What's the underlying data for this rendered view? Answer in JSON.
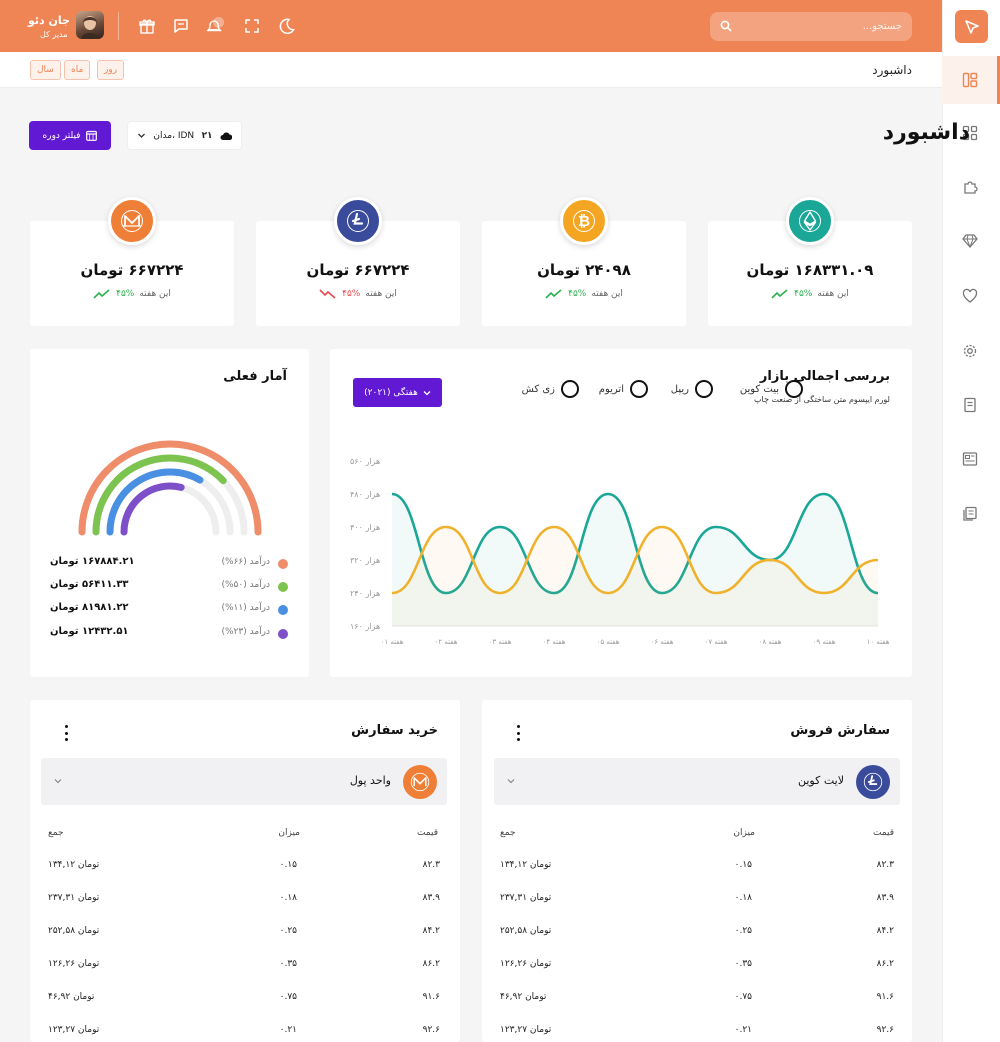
{
  "header": {
    "search_placeholder": "جستجو...",
    "user_name": "جان دئو",
    "user_role": "مدیر کل"
  },
  "subbar": {
    "title": "داشبورد",
    "ranges": [
      "روز",
      "ماه",
      "سال"
    ]
  },
  "page": {
    "title": "داشبورد",
    "filter_label": "فیلتر دوره",
    "weather_text": "مدان، IDN",
    "weather_temp": "۲۱"
  },
  "stats": [
    {
      "value": "۱۶۸۳۳۱.۰۹ تومان",
      "pct": "۴۵%",
      "trend": "up",
      "period": "این هفته",
      "coin": "ethereum",
      "color": "#1aa797"
    },
    {
      "value": "۲۴۰۹۸ تومان",
      "pct": "۴۵%",
      "trend": "up",
      "period": "این هفته",
      "coin": "bitcoin",
      "color": "#f4a623"
    },
    {
      "value": "۶۶۷۲۲۴ تومان",
      "pct": "۴۵%",
      "trend": "down",
      "period": "این هفته",
      "coin": "litecoin",
      "color": "#3a4b9c"
    },
    {
      "value": "۶۶۷۲۲۴ تومان",
      "pct": "۴۵%",
      "trend": "up",
      "period": "این هفته",
      "coin": "monero",
      "color": "#ef7f36"
    }
  ],
  "current_stats": {
    "title": "آمار فعلی",
    "items": [
      {
        "label": "درآمد (۶۶%)",
        "value": "۱۶۷۸۸۴.۲۱ تومان",
        "color": "#ef8d6a",
        "fraction": 0.66
      },
      {
        "label": "درآمد (۵۰%)",
        "value": "۵۶۴۱۱.۳۳ تومان",
        "color": "#7dc34f",
        "fraction": 0.5
      },
      {
        "label": "درآمد (۱۱%)",
        "value": "۸۱۹۸۱.۲۲ تومان",
        "color": "#4a90e2",
        "fraction": 0.11
      },
      {
        "label": "درآمد (۲۳%)",
        "value": "۱۲۴۳۲.۵۱ تومان",
        "color": "#7d4fc9",
        "fraction": 0.23
      }
    ]
  },
  "market": {
    "title": "بررسی اجمالی بازار",
    "subtitle": "لورم ایپسوم متن ساختگی از صنعت چاپ",
    "options": [
      "بیت کوین",
      "ریپل",
      "اتریوم",
      "زی کش"
    ],
    "period_button": "هفتگی (۲۰۲۱)"
  },
  "chart_data": {
    "type": "line",
    "x": [
      "هفته ۰۱",
      "هفته ۰۲",
      "هفته ۰۳",
      "هفته ۰۴",
      "هفته ۰۵",
      "هفته ۰۶",
      "هفته ۰۷",
      "هفته ۰۸",
      "هفته ۰۹",
      "هفته ۱۰"
    ],
    "y_ticks": [
      "۵۶۰ هزار",
      "۴۸۰ هزار",
      "۴۰۰ هزار",
      "۳۲۰ هزار",
      "۲۴۰ هزار",
      "۱۶۰ هزار"
    ],
    "ylim": [
      160,
      560
    ],
    "series": [
      {
        "color": "#1aa797",
        "values": [
          480,
          240,
          400,
          240,
          480,
          240,
          400,
          320,
          480,
          240
        ]
      },
      {
        "color": "#f0b12c",
        "values": [
          240,
          400,
          240,
          400,
          240,
          400,
          240,
          320,
          240,
          320
        ]
      }
    ]
  },
  "orders_buy": {
    "title": "خرید سفارش",
    "coin_label": "واحد پول",
    "columns": [
      "قیمت",
      "میزان",
      "جمع"
    ],
    "rows": [
      [
        "۸۲.۳",
        "۰.۱۵",
        "۱۳۴,۱۲ تومان"
      ],
      [
        "۸۳.۹",
        "۰.۱۸",
        "۲۳۷,۳۱ تومان"
      ],
      [
        "۸۴.۲",
        "۰.۲۵",
        "۲۵۲,۵۸ تومان"
      ],
      [
        "۸۶.۲",
        "۰.۳۵",
        "۱۲۶,۲۶ تومان"
      ],
      [
        "۹۱.۶",
        "۰.۷۵",
        "۴۶,۹۲ تومان"
      ],
      [
        "۹۲.۶",
        "۰.۲۱",
        "۱۲۳,۲۷ تومان"
      ]
    ]
  },
  "orders_sell": {
    "title": "سفارش فروش",
    "coin_label": "لایت کوین",
    "columns": [
      "قیمت",
      "میزان",
      "جمع"
    ],
    "rows": [
      [
        "۸۲.۳",
        "۰.۱۵",
        "۱۳۴,۱۲ تومان"
      ],
      [
        "۸۳.۹",
        "۰.۱۸",
        "۲۳۷,۳۱ تومان"
      ],
      [
        "۸۴.۲",
        "۰.۲۵",
        "۲۵۲,۵۸ تومان"
      ],
      [
        "۸۶.۲",
        "۰.۳۵",
        "۱۲۶,۲۶ تومان"
      ],
      [
        "۹۱.۶",
        "۰.۷۵",
        "۴۶,۹۲ تومان"
      ],
      [
        "۹۲.۶",
        "۰.۲۱",
        "۱۲۳,۲۷ تومان"
      ]
    ]
  }
}
